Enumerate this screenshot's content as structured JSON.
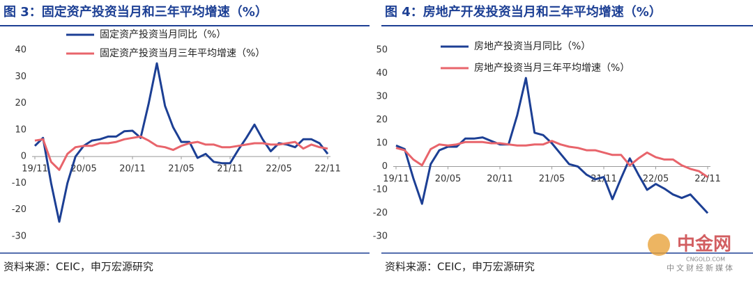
{
  "chart_data": [
    {
      "type": "line",
      "title": "图 3：固定资产投资当月和三年平均增速（%）",
      "source": "资料来源：CEIC，申万宏源研究",
      "categories": [
        "19/11",
        null,
        null,
        null,
        null,
        null,
        "20/05",
        null,
        null,
        null,
        null,
        null,
        "20/11",
        null,
        null,
        null,
        null,
        null,
        "21/05",
        null,
        null,
        null,
        null,
        null,
        "21/11",
        null,
        null,
        null,
        null,
        null,
        "22/05",
        null,
        null,
        null,
        null,
        null,
        "22/11"
      ],
      "ylim": [
        -30,
        40
      ],
      "yticks": [
        -30,
        -20,
        -10,
        0,
        10,
        20,
        30,
        40
      ],
      "series": [
        {
          "name": "固定资产投资当月同比（%）",
          "color": "#1c3f94",
          "values": [
            4,
            7,
            -10,
            -24.5,
            -10,
            0,
            4,
            6,
            6.5,
            7.5,
            7.5,
            9.5,
            9.7,
            7,
            20,
            35,
            19,
            11,
            5.5,
            5.5,
            -0.5,
            1,
            -2,
            -2.5,
            -2.5,
            2.5,
            7,
            12,
            6.5,
            2,
            5,
            4.5,
            3.5,
            6.5,
            6.5,
            5,
            1
          ]
        },
        {
          "name": "固定资产投资当月三年平均增速（%）",
          "color": "#e8646b",
          "values": [
            6,
            6.5,
            -2,
            -5,
            1,
            3.5,
            4,
            4,
            5,
            5,
            5.5,
            6.5,
            7,
            7.5,
            6,
            4,
            3.5,
            2.5,
            4,
            5,
            5.5,
            4.5,
            4.5,
            3.5,
            3.5,
            4,
            4.5,
            5,
            5,
            4.5,
            4.5,
            5,
            5.5,
            3,
            4.5,
            3.5,
            3
          ]
        }
      ]
    },
    {
      "type": "line",
      "title": "图 4：房地产开发投资当月和三年平均增速（%）",
      "source": "资料来源：CEIC，申万宏源研究",
      "categories": [
        "19/11",
        null,
        null,
        null,
        null,
        null,
        "20/05",
        null,
        null,
        null,
        null,
        null,
        "20/11",
        null,
        null,
        null,
        null,
        null,
        "21/05",
        null,
        null,
        null,
        null,
        null,
        "21/11",
        null,
        null,
        null,
        null,
        null,
        "22/05",
        null,
        null,
        null,
        null,
        null,
        "22/11"
      ],
      "ylim": [
        -30,
        50
      ],
      "yticks": [
        -30,
        -20,
        -10,
        0,
        10,
        20,
        30,
        40,
        50
      ],
      "series": [
        {
          "name": "房地产投资当月同比（%）",
          "color": "#1c3f94",
          "values": [
            9,
            7.5,
            -5,
            -16,
            1,
            7,
            8.5,
            8.5,
            12,
            12,
            12.5,
            11,
            9.5,
            9.5,
            22,
            38,
            14.5,
            13.5,
            10,
            5.5,
            1,
            0,
            -3.5,
            -5.5,
            -4.5,
            -14,
            -5,
            3.5,
            -3.5,
            -10,
            -7.5,
            -9.5,
            -12,
            -13.5,
            -12,
            -16,
            -20
          ]
        },
        {
          "name": "房地产投资当月三年平均增速（%）",
          "color": "#e8646b",
          "values": [
            8,
            7,
            3,
            0.5,
            7.5,
            9.5,
            9,
            9.5,
            10.5,
            10.5,
            10.5,
            10,
            10,
            9.5,
            9,
            9,
            9.5,
            9.5,
            11,
            9.5,
            8.5,
            8,
            7,
            7,
            6,
            5,
            5,
            0.5,
            3.5,
            6,
            4,
            3,
            3,
            0.5,
            -1,
            -2,
            -4.5
          ]
        }
      ]
    }
  ],
  "watermark": [
    "中金网",
    "CNGOLD.COM",
    "中文财经新媒体"
  ]
}
